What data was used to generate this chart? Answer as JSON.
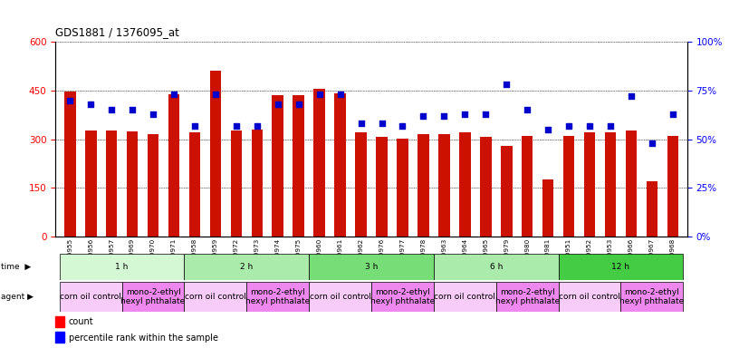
{
  "title": "GDS1881 / 1376095_at",
  "samples": [
    "GSM100955",
    "GSM100956",
    "GSM100957",
    "GSM100969",
    "GSM100970",
    "GSM100971",
    "GSM100958",
    "GSM100959",
    "GSM100972",
    "GSM100973",
    "GSM100974",
    "GSM100975",
    "GSM100960",
    "GSM100961",
    "GSM100962",
    "GSM100976",
    "GSM100977",
    "GSM100978",
    "GSM100963",
    "GSM100964",
    "GSM100965",
    "GSM100979",
    "GSM100980",
    "GSM100981",
    "GSM100951",
    "GSM100952",
    "GSM100953",
    "GSM100966",
    "GSM100967",
    "GSM100968"
  ],
  "counts": [
    447,
    328,
    328,
    325,
    315,
    438,
    320,
    510,
    328,
    330,
    435,
    435,
    455,
    440,
    320,
    308,
    303,
    315,
    315,
    320,
    307,
    280,
    310,
    175,
    310,
    320,
    320,
    328,
    170,
    310
  ],
  "percentiles": [
    70,
    68,
    65,
    65,
    63,
    73,
    57,
    73,
    57,
    57,
    68,
    68,
    73,
    73,
    58,
    58,
    57,
    62,
    62,
    63,
    63,
    78,
    65,
    55,
    57,
    57,
    57,
    72,
    48,
    63
  ],
  "time_groups": [
    {
      "label": "1 h",
      "start": 0,
      "end": 5,
      "color": "#d4f7d4"
    },
    {
      "label": "2 h",
      "start": 6,
      "end": 11,
      "color": "#aaeaaa"
    },
    {
      "label": "3 h",
      "start": 12,
      "end": 17,
      "color": "#77dd77"
    },
    {
      "label": "6 h",
      "start": 18,
      "end": 23,
      "color": "#aaeaaa"
    },
    {
      "label": "12 h",
      "start": 24,
      "end": 29,
      "color": "#44cc44"
    }
  ],
  "agent_groups": [
    {
      "label": "corn oil control",
      "start": 0,
      "end": 2,
      "color": "#f8ccf8"
    },
    {
      "label": "mono-2-ethyl\nhexyl phthalate",
      "start": 3,
      "end": 5,
      "color": "#ee88ee"
    },
    {
      "label": "corn oil control",
      "start": 6,
      "end": 8,
      "color": "#f8ccf8"
    },
    {
      "label": "mono-2-ethyl\nhexyl phthalate",
      "start": 9,
      "end": 11,
      "color": "#ee88ee"
    },
    {
      "label": "corn oil control",
      "start": 12,
      "end": 14,
      "color": "#f8ccf8"
    },
    {
      "label": "mono-2-ethyl\nhexyl phthalate",
      "start": 15,
      "end": 17,
      "color": "#ee88ee"
    },
    {
      "label": "corn oil control",
      "start": 18,
      "end": 20,
      "color": "#f8ccf8"
    },
    {
      "label": "mono-2-ethyl\nhexyl phthalate",
      "start": 21,
      "end": 23,
      "color": "#ee88ee"
    },
    {
      "label": "corn oil control",
      "start": 24,
      "end": 26,
      "color": "#f8ccf8"
    },
    {
      "label": "mono-2-ethyl\nhexyl phthalate",
      "start": 27,
      "end": 29,
      "color": "#ee88ee"
    }
  ],
  "bar_color": "#cc1100",
  "dot_color": "#0000cc",
  "ylim_left": [
    0,
    600
  ],
  "ylim_right": [
    0,
    100
  ],
  "yticks_left": [
    0,
    150,
    300,
    450,
    600
  ],
  "yticks_right": [
    0,
    25,
    50,
    75,
    100
  ],
  "bar_width": 0.55
}
